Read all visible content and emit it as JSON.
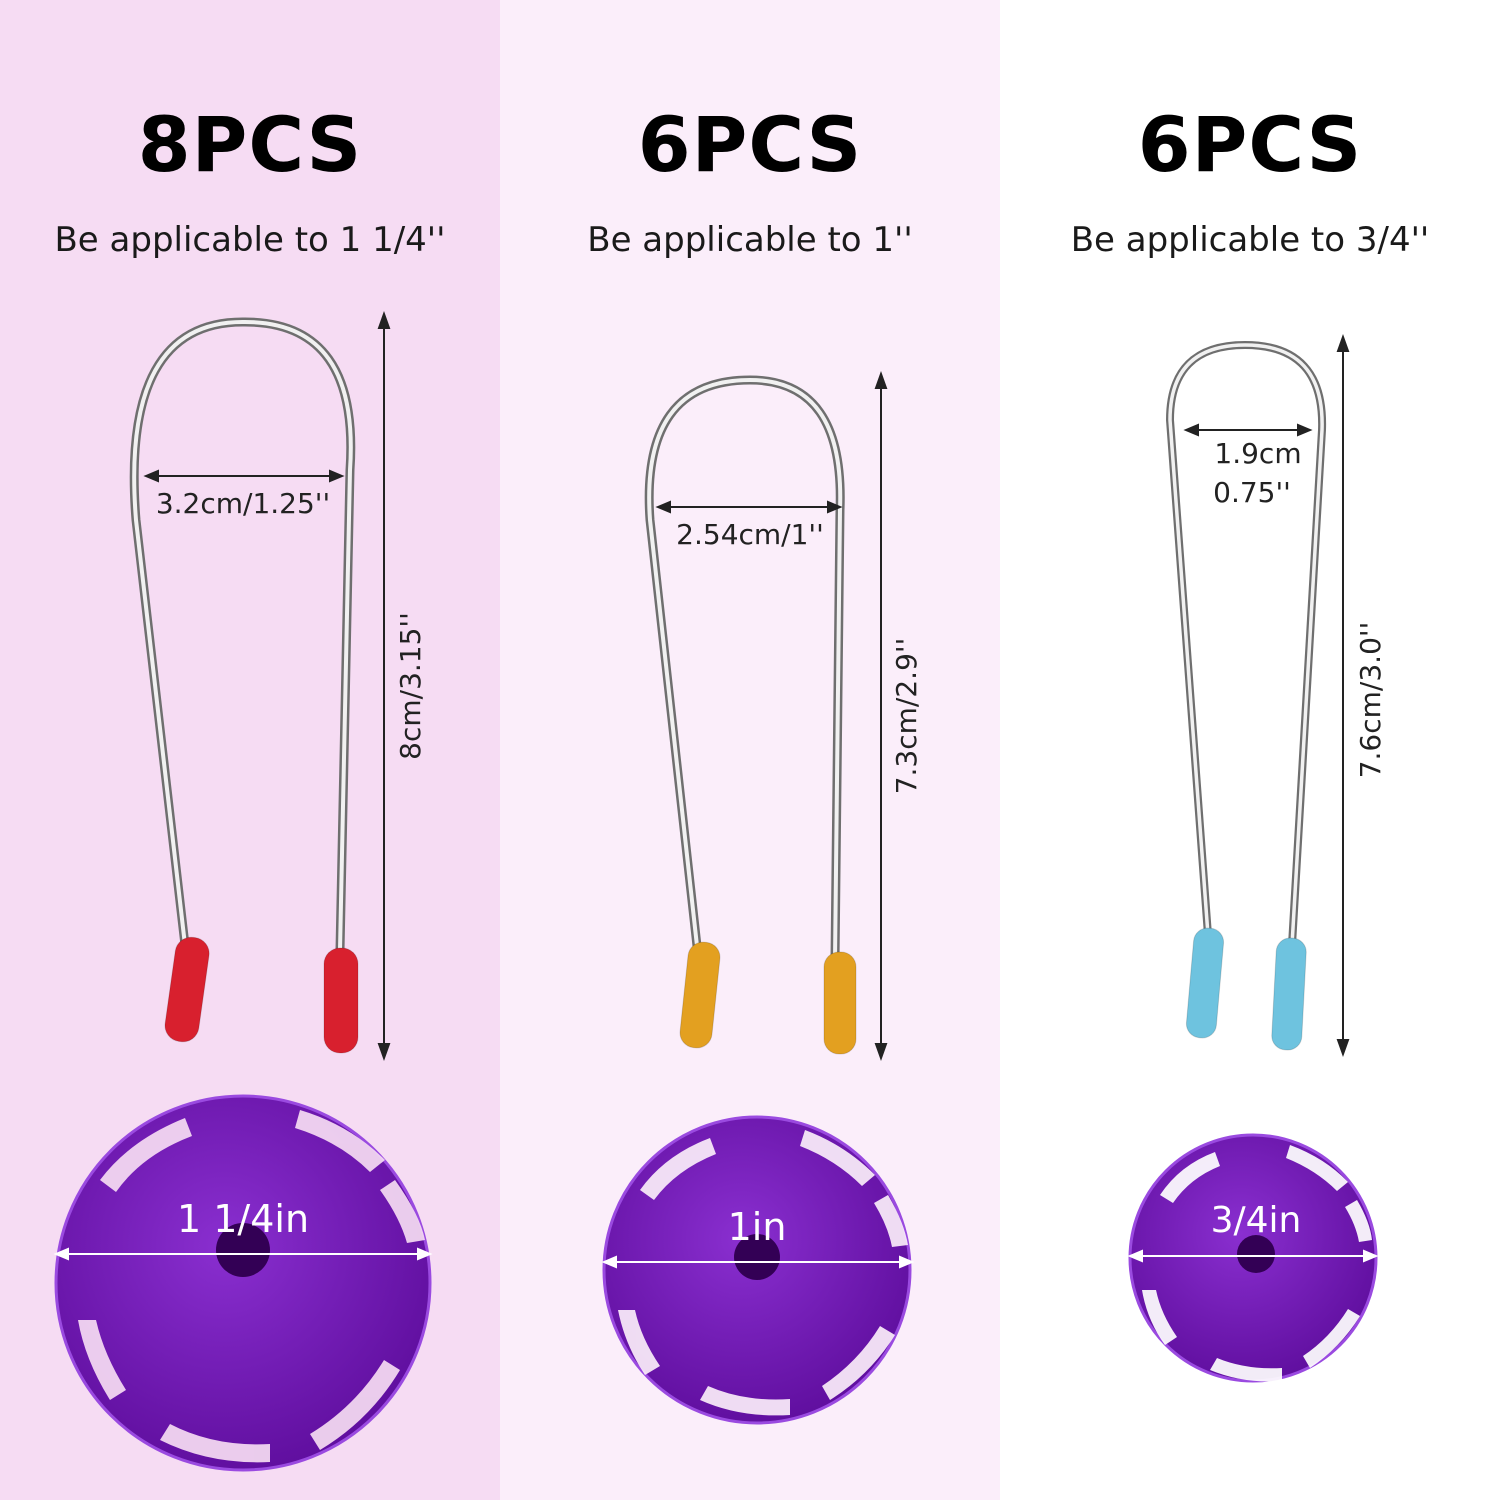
{
  "columns": [
    {
      "count": "8PCS",
      "subtitle": "Be applicable to 1 1/4''",
      "width_label": "3.2cm/1.25''",
      "height_label": "8cm/3.15''",
      "disc_label": "1 1/4in",
      "tip_color": "#d8202e"
    },
    {
      "count": "6PCS",
      "subtitle": "Be applicable to 1''",
      "width_label": "2.54cm/1''",
      "height_label": "7.3cm/2.9''",
      "disc_label": "1in",
      "tip_color": "#e3a020"
    },
    {
      "count": "6PCS",
      "subtitle": "Be applicable to 3/4''",
      "width_label_line1": "1.9cm",
      "width_label_line2": "0.75''",
      "height_label": "7.6cm/3.0''",
      "disc_label": "3/4in",
      "tip_color": "#6ec3df"
    }
  ],
  "disc_color": "#6a0fb0"
}
